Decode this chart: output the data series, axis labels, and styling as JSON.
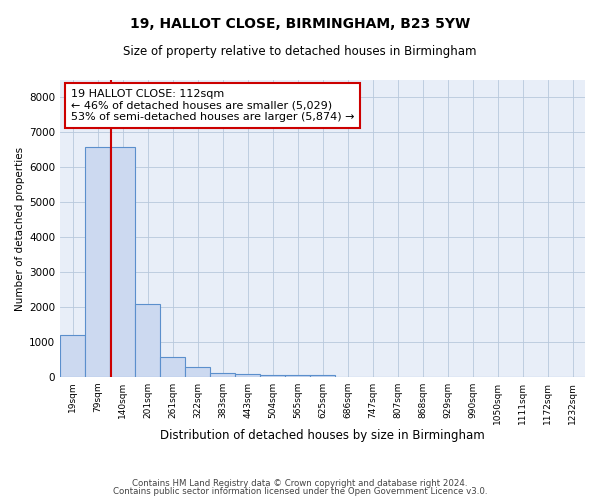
{
  "title1": "19, HALLOT CLOSE, BIRMINGHAM, B23 5YW",
  "title2": "Size of property relative to detached houses in Birmingham",
  "xlabel": "Distribution of detached houses by size in Birmingham",
  "ylabel": "Number of detached properties",
  "categories": [
    "19sqm",
    "79sqm",
    "140sqm",
    "201sqm",
    "261sqm",
    "322sqm",
    "383sqm",
    "443sqm",
    "504sqm",
    "565sqm",
    "625sqm",
    "686sqm",
    "747sqm",
    "807sqm",
    "868sqm",
    "929sqm",
    "990sqm",
    "1050sqm",
    "1111sqm",
    "1172sqm",
    "1232sqm"
  ],
  "values": [
    1200,
    6580,
    6580,
    2100,
    580,
    290,
    120,
    80,
    60,
    50,
    50,
    0,
    0,
    0,
    0,
    0,
    0,
    0,
    0,
    0,
    0
  ],
  "bar_color": "#ccd9f0",
  "bar_edge_color": "#5b8fcc",
  "vline_color": "#cc0000",
  "annotation_text": "19 HALLOT CLOSE: 112sqm\n← 46% of detached houses are smaller (5,029)\n53% of semi-detached houses are larger (5,874) →",
  "ylim": [
    0,
    8500
  ],
  "yticks": [
    0,
    1000,
    2000,
    3000,
    4000,
    5000,
    6000,
    7000,
    8000
  ],
  "footer1": "Contains HM Land Registry data © Crown copyright and database right 2024.",
  "footer2": "Contains public sector information licensed under the Open Government Licence v3.0.",
  "background_color": "#ffffff",
  "plot_bg_color": "#e8eef8",
  "grid_color": "#b8c8dc"
}
